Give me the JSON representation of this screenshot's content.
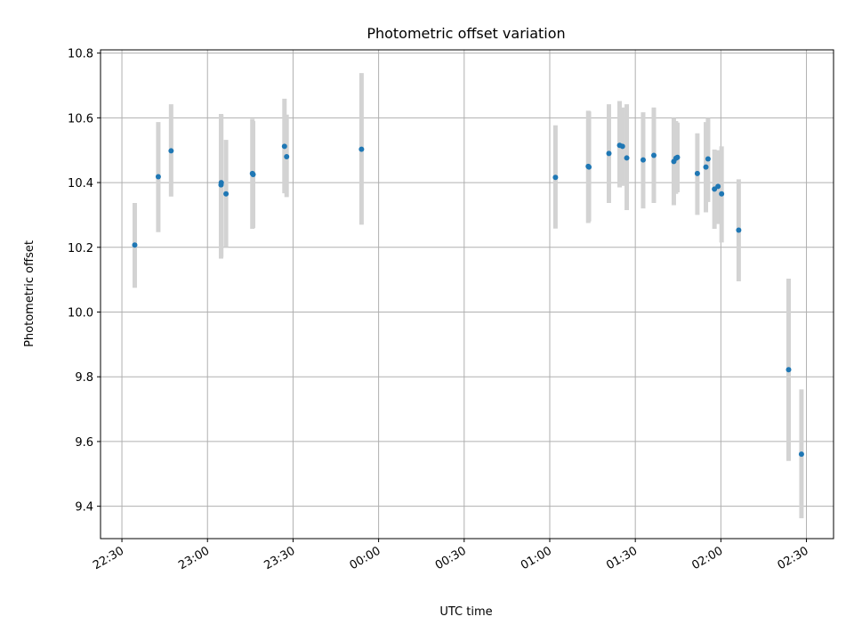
{
  "chart_data": {
    "type": "scatter",
    "title": "Photometric offset variation",
    "xlabel": "UTC time",
    "ylabel": "Photometric offset",
    "x_tick_labels": [
      "22:30",
      "23:00",
      "23:30",
      "00:00",
      "00:30",
      "01:00",
      "01:30",
      "02:00",
      "02:30"
    ],
    "x_tick_minutes": [
      -90,
      -60,
      -30,
      0,
      30,
      60,
      90,
      120,
      150
    ],
    "x_range_minutes": [
      -97.5,
      159.5
    ],
    "y_ticks": [
      9.4,
      9.6,
      9.8,
      10.0,
      10.2,
      10.4,
      10.6,
      10.8
    ],
    "ylim": [
      9.3,
      10.81
    ],
    "grid": true,
    "series": [
      {
        "color": "#1f77b4",
        "error_color": "#d3d3d3",
        "points": [
          {
            "t": "22:34:30",
            "y": 10.207,
            "err_low": 10.075,
            "err_high": 10.337
          },
          {
            "t": "22:42:45",
            "y": 10.418,
            "err_low": 10.247,
            "err_high": 10.587
          },
          {
            "t": "22:47:15",
            "y": 10.498,
            "err_low": 10.357,
            "err_high": 10.642
          },
          {
            "t": "23:04:45",
            "y": 10.393,
            "err_low": 10.165,
            "err_high": 10.612
          },
          {
            "t": "23:04:50",
            "y": 10.4,
            "err_low": 10.17,
            "err_high": 10.61
          },
          {
            "t": "23:06:30",
            "y": 10.365,
            "err_low": 10.2,
            "err_high": 10.532
          },
          {
            "t": "23:15:45",
            "y": 10.428,
            "err_low": 10.257,
            "err_high": 10.597
          },
          {
            "t": "23:16:00",
            "y": 10.425,
            "err_low": 10.26,
            "err_high": 10.59
          },
          {
            "t": "23:27:00",
            "y": 10.512,
            "err_low": 10.367,
            "err_high": 10.659
          },
          {
            "t": "23:27:45",
            "y": 10.48,
            "err_low": 10.355,
            "err_high": 10.61
          },
          {
            "t": "23:54:00",
            "y": 10.503,
            "err_low": 10.27,
            "err_high": 10.738
          },
          {
            "t": "01:02:00",
            "y": 10.416,
            "err_low": 10.258,
            "err_high": 10.577
          },
          {
            "t": "01:13:30",
            "y": 10.45,
            "err_low": 10.275,
            "err_high": 10.622
          },
          {
            "t": "01:13:45",
            "y": 10.448,
            "err_low": 10.28,
            "err_high": 10.62
          },
          {
            "t": "01:20:45",
            "y": 10.49,
            "err_low": 10.337,
            "err_high": 10.642
          },
          {
            "t": "01:24:30",
            "y": 10.515,
            "err_low": 10.385,
            "err_high": 10.652
          },
          {
            "t": "01:25:30",
            "y": 10.512,
            "err_low": 10.39,
            "err_high": 10.632
          },
          {
            "t": "01:27:00",
            "y": 10.476,
            "err_low": 10.315,
            "err_high": 10.642
          },
          {
            "t": "01:32:45",
            "y": 10.47,
            "err_low": 10.32,
            "err_high": 10.617
          },
          {
            "t": "01:36:30",
            "y": 10.484,
            "err_low": 10.337,
            "err_high": 10.632
          },
          {
            "t": "01:43:30",
            "y": 10.465,
            "err_low": 10.33,
            "err_high": 10.6
          },
          {
            "t": "01:44:15",
            "y": 10.475,
            "err_low": 10.365,
            "err_high": 10.59
          },
          {
            "t": "01:44:45",
            "y": 10.478,
            "err_low": 10.37,
            "err_high": 10.585
          },
          {
            "t": "01:51:45",
            "y": 10.428,
            "err_low": 10.3,
            "err_high": 10.552
          },
          {
            "t": "01:54:45",
            "y": 10.448,
            "err_low": 10.308,
            "err_high": 10.587
          },
          {
            "t": "01:55:30",
            "y": 10.473,
            "err_low": 10.34,
            "err_high": 10.6
          },
          {
            "t": "01:57:45",
            "y": 10.38,
            "err_low": 10.257,
            "err_high": 10.502
          },
          {
            "t": "01:59:00",
            "y": 10.388,
            "err_low": 10.272,
            "err_high": 10.5
          },
          {
            "t": "02:00:15",
            "y": 10.365,
            "err_low": 10.215,
            "err_high": 10.512
          },
          {
            "t": "02:06:15",
            "y": 10.253,
            "err_low": 10.095,
            "err_high": 10.41
          },
          {
            "t": "02:23:45",
            "y": 9.822,
            "err_low": 9.54,
            "err_high": 10.103
          },
          {
            "t": "02:28:15",
            "y": 9.561,
            "err_low": 9.363,
            "err_high": 9.761
          }
        ]
      }
    ]
  }
}
